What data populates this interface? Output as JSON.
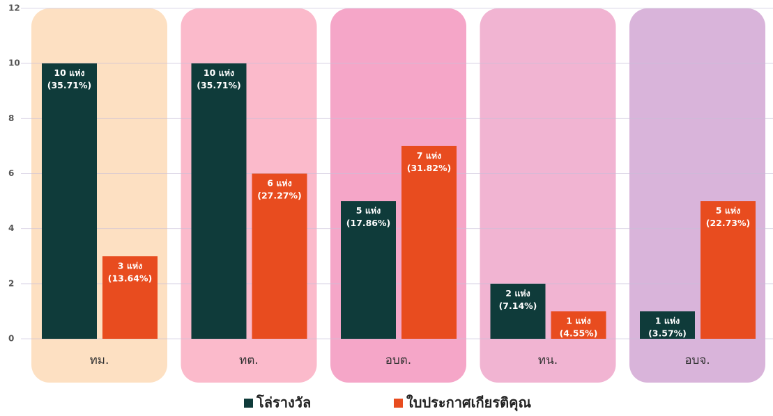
{
  "chart_data": {
    "type": "bar",
    "categories": [
      "ทม.",
      "ทต.",
      "อบต.",
      "ทน.",
      "อบจ."
    ],
    "series": [
      {
        "name": "โล่รางวัล",
        "color": "#0f3b3a",
        "values": [
          10,
          10,
          5,
          2,
          1
        ],
        "value_labels": [
          [
            "10 แห่ง",
            "(35.71%)"
          ],
          [
            "10 แห่ง",
            "(35.71%)"
          ],
          [
            "5 แห่ง",
            "(17.86%)"
          ],
          [
            "2 แห่ง",
            "(7.14%)"
          ],
          [
            "1 แห่ง",
            "(3.57%)"
          ]
        ]
      },
      {
        "name": "ใบประกาศเกียรติคุณ",
        "color": "#e84c1f",
        "values": [
          3,
          6,
          7,
          1,
          5
        ],
        "value_labels": [
          [
            "3 แห่ง",
            "(13.64%)"
          ],
          [
            "6 แห่ง",
            "(27.27%)"
          ],
          [
            "7 แห่ง",
            "(31.82%)"
          ],
          [
            "1 แห่ง",
            "(4.55%)"
          ],
          [
            "5 แห่ง",
            "(22.73%)"
          ]
        ]
      }
    ],
    "panel_colors": [
      "#fde0c2",
      "#fbbacb",
      "#f5a6c8",
      "#f1b4d2",
      "#d9b4da"
    ],
    "ylim": [
      0,
      12
    ],
    "yticks": [
      0,
      2,
      4,
      6,
      8,
      10,
      12
    ],
    "grid": true,
    "legend": "bottom"
  }
}
